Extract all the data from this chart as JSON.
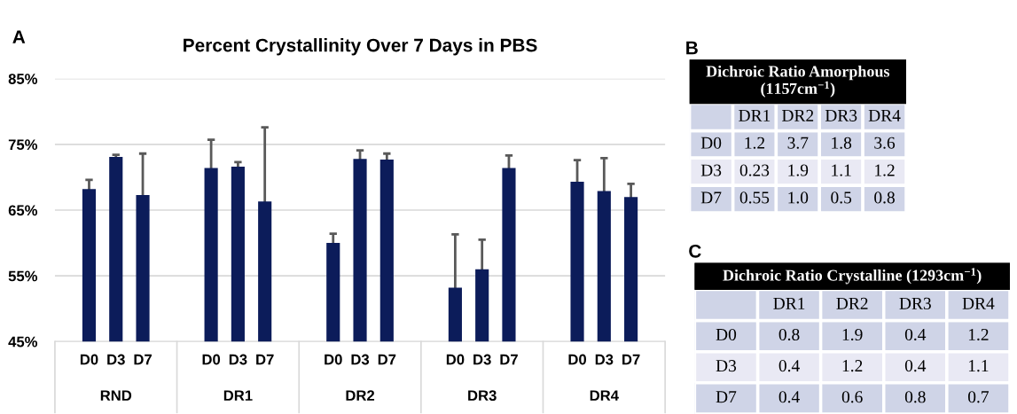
{
  "chart_data": [
    {
      "type": "bar",
      "title": "Percent Crystallinity Over 7 Days in PBS",
      "annotations": [
        "A"
      ],
      "categories": [
        "RND",
        "DR1",
        "DR2",
        "DR3",
        "DR4"
      ],
      "series": [
        {
          "name": "D0",
          "color": "#0c1c5a",
          "values": [
            68.2,
            71.4,
            60.0,
            53.2,
            69.3
          ],
          "errors": [
            1.4,
            4.3,
            1.4,
            8.1,
            3.3
          ]
        },
        {
          "name": "D3",
          "color": "#0c1c5a",
          "values": [
            73.1,
            71.6,
            72.8,
            56.0,
            67.9
          ],
          "errors": [
            0.3,
            0.7,
            1.3,
            4.5,
            5.0
          ]
        },
        {
          "name": "D7",
          "color": "#0c1c5a",
          "values": [
            67.3,
            66.3,
            72.7,
            71.4,
            67.0
          ],
          "errors": [
            6.3,
            11.3,
            0.9,
            1.9,
            2.0
          ]
        }
      ],
      "ylim": [
        45,
        85
      ],
      "yticks": [
        {
          "value": 45,
          "label": "45%"
        },
        {
          "value": 55,
          "label": "55%"
        },
        {
          "value": 65,
          "label": "65%"
        },
        {
          "value": 75,
          "label": "75%"
        },
        {
          "value": 85,
          "label": "85%"
        }
      ],
      "grid": "y"
    },
    {
      "type": "heatmap",
      "title": "Dichroic Ratio Amorphous\n(1157cm$^{−1}$)",
      "annotations": [
        "B"
      ],
      "categories": [
        "DR1",
        "DR2",
        "DR3",
        "DR4"
      ],
      "y_categories": [
        "D0",
        "D3",
        "D7"
      ],
      "cells": [
        [
          1.2,
          3.7,
          1.8,
          3.6
        ],
        [
          0.23,
          1.9,
          1.1,
          1.2
        ],
        [
          0.55,
          1.0,
          0.5,
          0.8
        ]
      ],
      "cell_labels": [
        [
          "1.2",
          "3.7",
          "1.8",
          "3.6"
        ],
        [
          "0.23",
          "1.9",
          "1.1",
          "1.2"
        ],
        [
          "0.55",
          "1.0",
          "0.5",
          "0.8"
        ]
      ],
      "data_labels": true
    },
    {
      "type": "heatmap",
      "title": "Dichroic Ratio Crystalline (1293cm$^{−1}$)",
      "annotations": [
        "C"
      ],
      "categories": [
        "DR1",
        "DR2",
        "DR3",
        "DR4"
      ],
      "y_categories": [
        "D0",
        "D3",
        "D7"
      ],
      "cells": [
        [
          0.8,
          1.9,
          0.4,
          1.2
        ],
        [
          0.4,
          1.2,
          0.4,
          1.1
        ],
        [
          0.4,
          0.6,
          0.8,
          0.7
        ]
      ],
      "data_labels": true
    }
  ]
}
